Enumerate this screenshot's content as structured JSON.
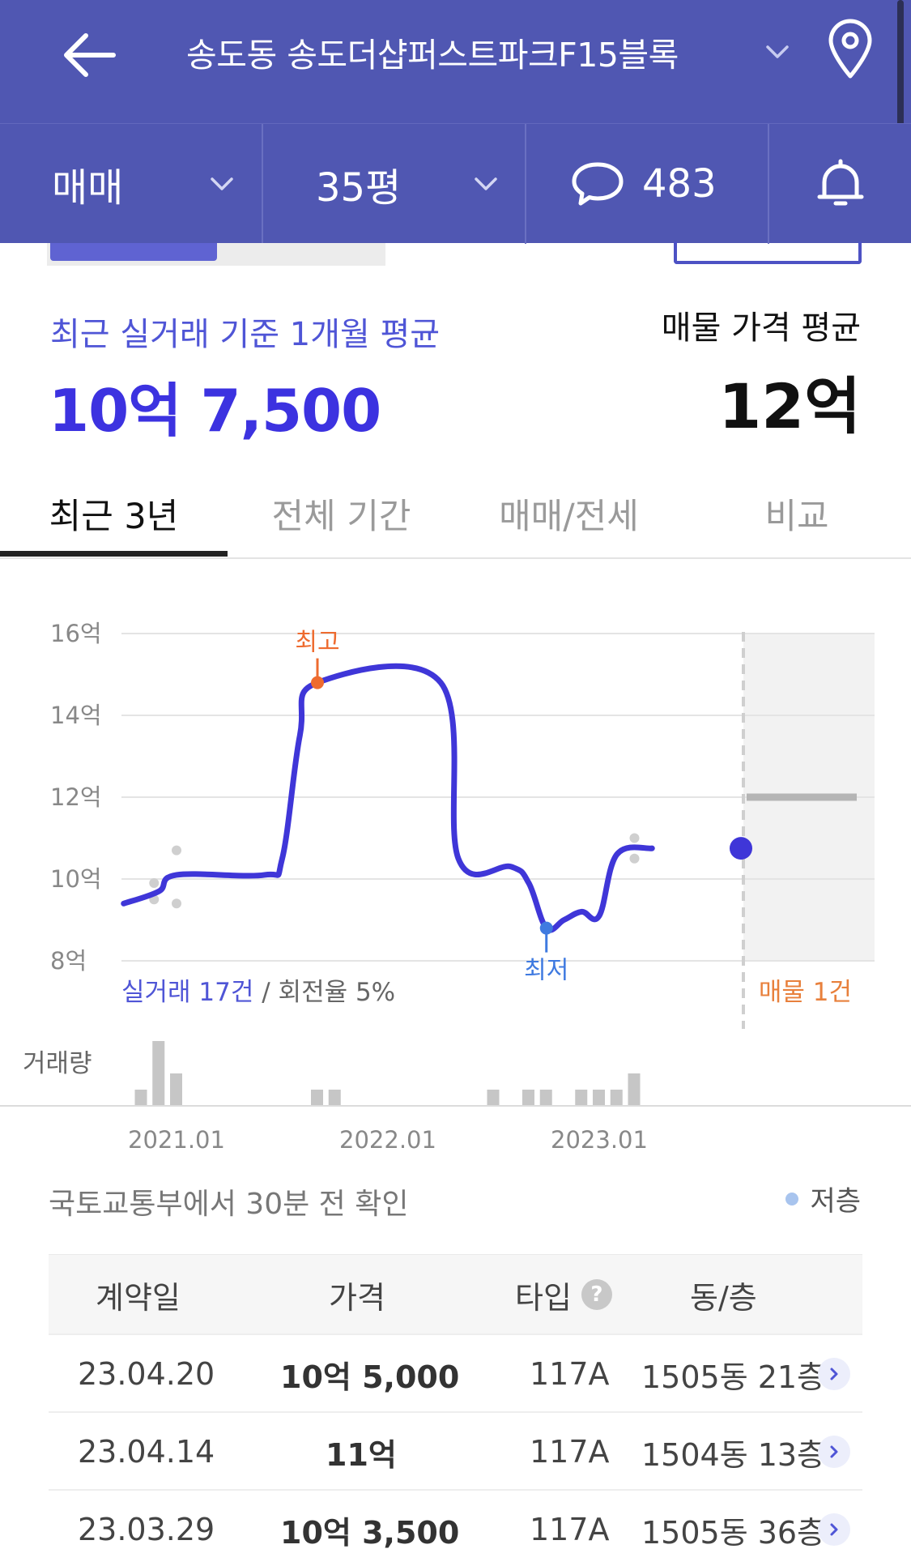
{
  "header": {
    "title": "송도동 송도더샵퍼스트파크F15블록",
    "icons": {
      "back": "arrow-left-icon",
      "dropdown": "chevron-down-icon",
      "location": "map-pin-icon"
    }
  },
  "filters": {
    "deal_type": "매매",
    "size": "35평",
    "comment_count": "483",
    "icons": {
      "comment": "speech-bubble-icon",
      "alert": "bell-icon"
    }
  },
  "summary": {
    "recent_avg_label": "최근 실거래 기준 1개월 평균",
    "recent_avg_value": "10억 7,500",
    "listing_avg_label": "매물 가격 평균",
    "listing_avg_value": "12억"
  },
  "tabs": [
    {
      "label": "최근 3년",
      "active": true
    },
    {
      "label": "전체 기간",
      "active": false
    },
    {
      "label": "매매/전세",
      "active": false
    },
    {
      "label": "비교",
      "active": false
    }
  ],
  "chart_data": {
    "type": "line",
    "y_ticks": [
      "16억",
      "14억",
      "12억",
      "10억",
      "8억"
    ],
    "ylim": [
      8,
      16
    ],
    "ylabel_unit": "억",
    "x_ticks": [
      "2021.01",
      "2022.01",
      "2023.01"
    ],
    "series": [
      {
        "values": [
          {
            "x": "2020.10",
            "y": 9.4
          },
          {
            "x": "2020.12",
            "y": 9.7
          },
          {
            "x": "2021.01",
            "y": 10.1
          },
          {
            "x": "2021.06",
            "y": 10.1
          },
          {
            "x": "2021.07",
            "y": 10.5
          },
          {
            "x": "2021.08",
            "y": 13.5
          },
          {
            "x": "2021.09",
            "y": 14.8
          },
          {
            "x": "2022.04",
            "y": 14.8
          },
          {
            "x": "2022.05",
            "y": 10.5
          },
          {
            "x": "2022.08",
            "y": 10.3
          },
          {
            "x": "2022.09",
            "y": 9.9
          },
          {
            "x": "2022.10",
            "y": 8.8
          },
          {
            "x": "2022.11",
            "y": 9.0
          },
          {
            "x": "2022.12",
            "y": 9.2
          },
          {
            "x": "2023.01",
            "y": 9.1
          },
          {
            "x": "2023.02",
            "y": 10.6
          },
          {
            "x": "2023.04",
            "y": 10.75
          }
        ]
      }
    ],
    "transactions": [
      {
        "x": "2020.12",
        "y": 9.9
      },
      {
        "x": "2020.12",
        "y": 9.5
      },
      {
        "x": "2021.01",
        "y": 10.7
      },
      {
        "x": "2021.01",
        "y": 9.4
      },
      {
        "x": "2023.03",
        "y": 11.0
      },
      {
        "x": "2023.03",
        "y": 10.5
      }
    ],
    "high": {
      "label": "최고",
      "x": "2021.09",
      "y": 14.8
    },
    "low": {
      "label": "최저",
      "x": "2022.10",
      "y": 8.8
    },
    "listing_level": 12,
    "volume_label": "거래량",
    "volume": [
      {
        "x": "2020.11",
        "v": 1
      },
      {
        "x": "2020.12",
        "v": 4
      },
      {
        "x": "2021.01",
        "v": 2
      },
      {
        "x": "2021.09",
        "v": 1
      },
      {
        "x": "2021.10",
        "v": 1
      },
      {
        "x": "2022.07",
        "v": 1
      },
      {
        "x": "2022.09",
        "v": 1
      },
      {
        "x": "2022.10",
        "v": 1
      },
      {
        "x": "2022.12",
        "v": 1
      },
      {
        "x": "2023.01",
        "v": 1
      },
      {
        "x": "2023.02",
        "v": 1
      },
      {
        "x": "2023.03",
        "v": 2
      }
    ],
    "count_text": "실거래 17건",
    "turnover_text": " / 회전율 5%",
    "listing_count_text": "매물 1건",
    "colors": {
      "line": "#3f36d8",
      "high": "#ee6b2f",
      "low": "#3f7ae0",
      "listing": "#e8803c",
      "dots": "#cfcfcf",
      "volume": "#c6c6c6"
    }
  },
  "update_note": "국토교통부에서 30분 전 확인",
  "legend_low_floor": "저층",
  "table": {
    "headers": [
      "계약일",
      "가격",
      "타입",
      "동/층"
    ],
    "help_icon": "question-circle-icon",
    "rows": [
      {
        "date": "23.04.20",
        "price": "10억 5,000",
        "type": "117A",
        "unit": "1505동 21층"
      },
      {
        "date": "23.04.14",
        "price": "11억",
        "type": "117A",
        "unit": "1504동 13층"
      },
      {
        "date": "23.03.29",
        "price": "10억 3,500",
        "type": "117A",
        "unit": "1505동 36층"
      }
    ]
  }
}
